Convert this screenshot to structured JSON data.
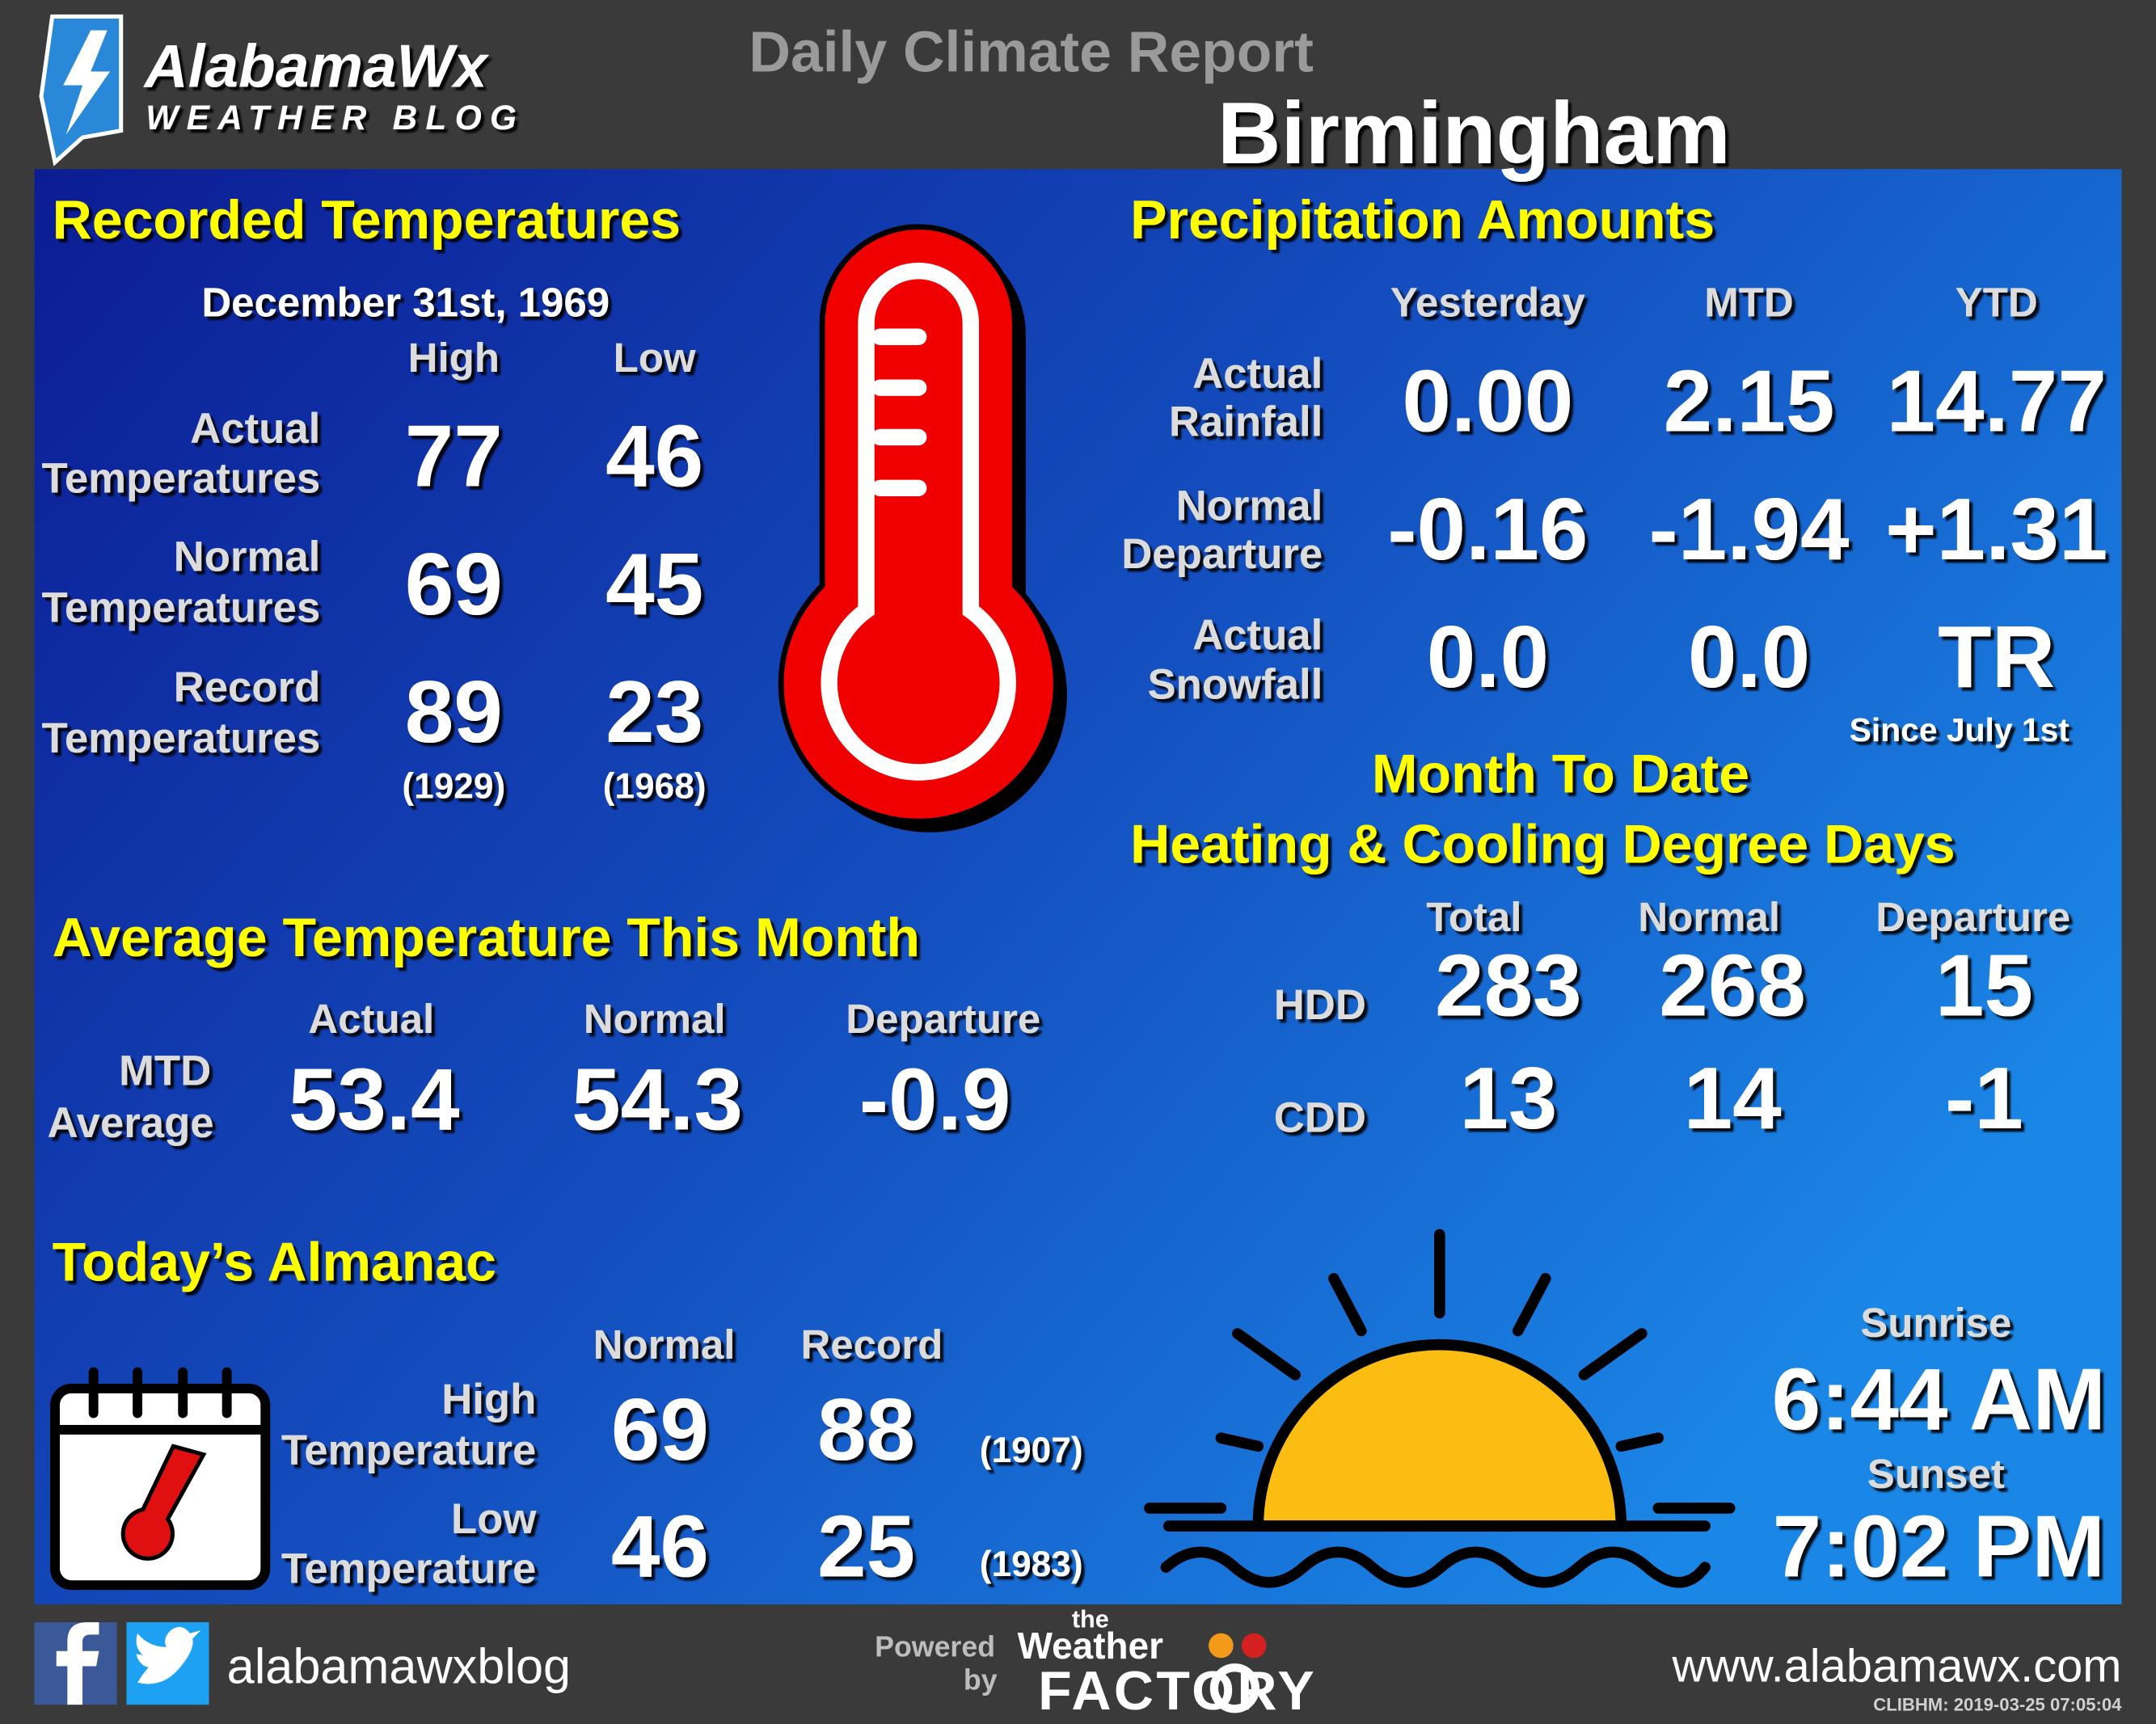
{
  "header": {
    "logo_title": "AlabamaWx",
    "logo_subtitle": "WEATHER BLOG",
    "title": "Daily Climate Report",
    "city": "Birmingham"
  },
  "recorded_temperatures": {
    "title": "Recorded Temperatures",
    "date": "December  31st, 1969",
    "columns": [
      "High",
      "Low"
    ],
    "rows": [
      {
        "label": [
          "Actual",
          "Temperatures"
        ],
        "values": [
          "77",
          "46"
        ]
      },
      {
        "label": [
          "Normal",
          "Temperatures"
        ],
        "values": [
          "69",
          "45"
        ]
      },
      {
        "label": [
          "Record",
          "Temperatures"
        ],
        "values": [
          "89",
          "23"
        ],
        "years": [
          "(1929)",
          "(1968)"
        ]
      }
    ]
  },
  "precipitation": {
    "title": "Precipitation Amounts",
    "columns": [
      "Yesterday",
      "MTD",
      "YTD"
    ],
    "rows": [
      {
        "label": [
          "Actual",
          "Rainfall"
        ],
        "values": [
          "0.00",
          "2.15",
          "14.77"
        ]
      },
      {
        "label": [
          "Normal",
          "Departure"
        ],
        "values": [
          "-0.16",
          "-1.94",
          "+1.31"
        ]
      },
      {
        "label": [
          "Actual",
          "Snowfall"
        ],
        "values": [
          "0.0",
          "0.0",
          "TR"
        ]
      }
    ],
    "note": "Since  July  1st"
  },
  "degree_days": {
    "title": [
      "Month To Date",
      "Heating & Cooling Degree Days"
    ],
    "columns": [
      "Total",
      "Normal",
      "Departure"
    ],
    "rows": [
      {
        "label": "HDD",
        "values": [
          "283",
          "268",
          "15"
        ]
      },
      {
        "label": "CDD",
        "values": [
          "13",
          "14",
          "-1"
        ]
      }
    ]
  },
  "average_temperature": {
    "title": "Average Temperature This Month",
    "columns": [
      "Actual",
      "Normal",
      "Departure"
    ],
    "label": [
      "MTD",
      "Average"
    ],
    "values": [
      "53.4",
      "54.3",
      "-0.9"
    ]
  },
  "almanac": {
    "title": "Today’s Almanac",
    "columns": [
      "Normal",
      "Record"
    ],
    "rows": [
      {
        "label": [
          "High",
          "Temperature"
        ],
        "values": [
          "69",
          "88"
        ],
        "year": "(1907)"
      },
      {
        "label": [
          "Low",
          "Temperature"
        ],
        "values": [
          "46",
          "25"
        ],
        "year": "(1983)"
      }
    ],
    "sunrise_label": "Sunrise",
    "sunrise": "6:44 AM",
    "sunset_label": "Sunset",
    "sunset": "7:02 PM"
  },
  "footer": {
    "social": "alabamawxblog",
    "powered": "Powered",
    "by": "by",
    "brand_the": "the",
    "brand_weather": "Weather",
    "brand_factory": "FACTORY",
    "website": "www.alabamawx.com",
    "stamp": "CLIBHM:  2019-03-25  07:05:04"
  }
}
